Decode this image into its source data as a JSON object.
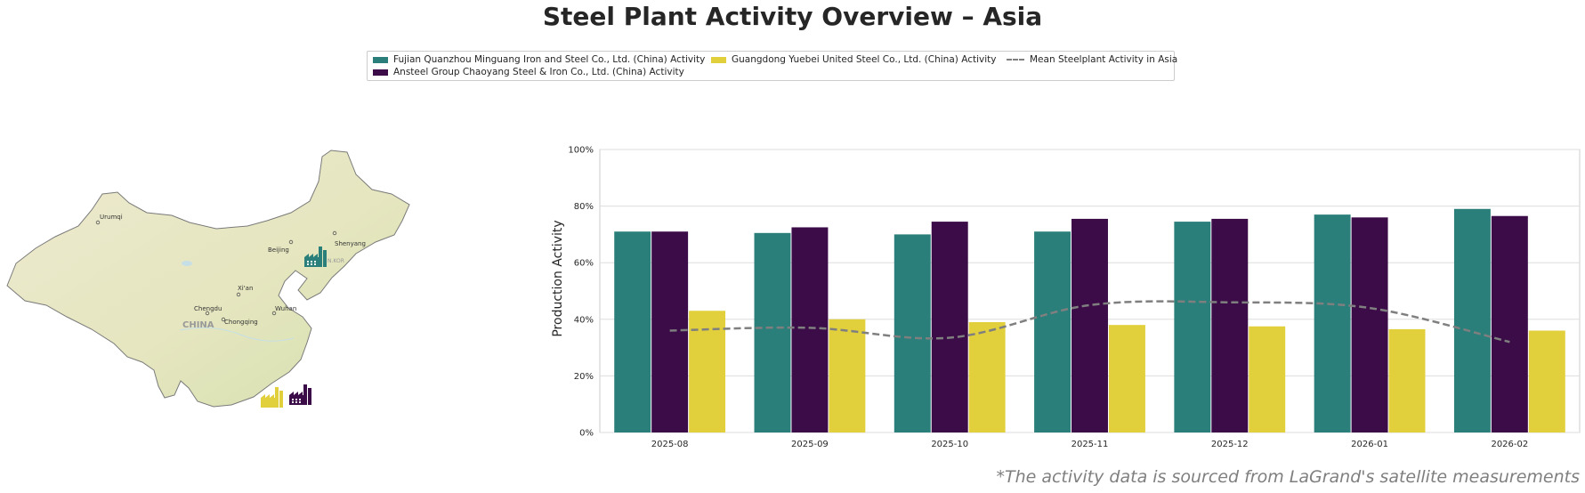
{
  "title": "Steel Plant Activity Overview – Asia",
  "legend": {
    "items": [
      {
        "label": "Fujian Quanzhou Minguang Iron and Steel Co., Ltd. (China) Activity",
        "color": "#2a7f7a"
      },
      {
        "label": "Ansteel Group Chaoyang Steel & Iron Co., Ltd. (China) Activity",
        "color": "#3b0c47"
      },
      {
        "label": "Guangdong Yuebei United Steel Co., Ltd. (China) Activity",
        "color": "#e1d03c"
      },
      {
        "label": "Mean Steelplant Activity in Asia",
        "color": "#7f7f7f"
      }
    ]
  },
  "map": {
    "labels": {
      "country": "CHINA",
      "urumqi": "Urumqi",
      "beijing": "Beijing",
      "shenyang": "Shenyang",
      "xian": "Xi'an",
      "chengdu": "Chengdu",
      "chongqing": "Chongqing",
      "wuhan": "Wuhan",
      "nkorea": "N.KOR"
    },
    "plant_icons": [
      "factory-icon",
      "factory-icon",
      "factory-icon"
    ]
  },
  "chart_data": {
    "type": "bar",
    "categories": [
      "2025-08",
      "2025-09",
      "2025-10",
      "2025-11",
      "2025-12",
      "2026-01",
      "2026-02"
    ],
    "series": [
      {
        "name": "Fujian Quanzhou Minguang Iron and Steel Co., Ltd. (China) Activity",
        "color": "#2a7f7a",
        "values": [
          71,
          70.5,
          70,
          71,
          74.5,
          77,
          79
        ]
      },
      {
        "name": "Ansteel Group Chaoyang Steel & Iron Co., Ltd. (China) Activity",
        "color": "#3b0c47",
        "values": [
          71,
          72.5,
          74.5,
          75.5,
          75.5,
          76,
          76.5
        ]
      },
      {
        "name": "Guangdong Yuebei United Steel Co., Ltd. (China) Activity",
        "color": "#e1d03c",
        "values": [
          43,
          40,
          39,
          38,
          37.5,
          36.5,
          36
        ]
      }
    ],
    "mean_line": {
      "name": "Mean Steelplant Activity in Asia",
      "values": [
        36,
        37,
        33.5,
        45,
        46,
        44,
        32
      ],
      "color": "#7f7f7f",
      "style": "dashed"
    },
    "ylabel": "Production Activity",
    "xlabel": "",
    "ylim": [
      0,
      100
    ],
    "yticks": [
      "0%",
      "20%",
      "40%",
      "60%",
      "80%",
      "100%"
    ],
    "grid": true
  },
  "source_note": "*The activity data is sourced from LaGrand's satellite measurements"
}
